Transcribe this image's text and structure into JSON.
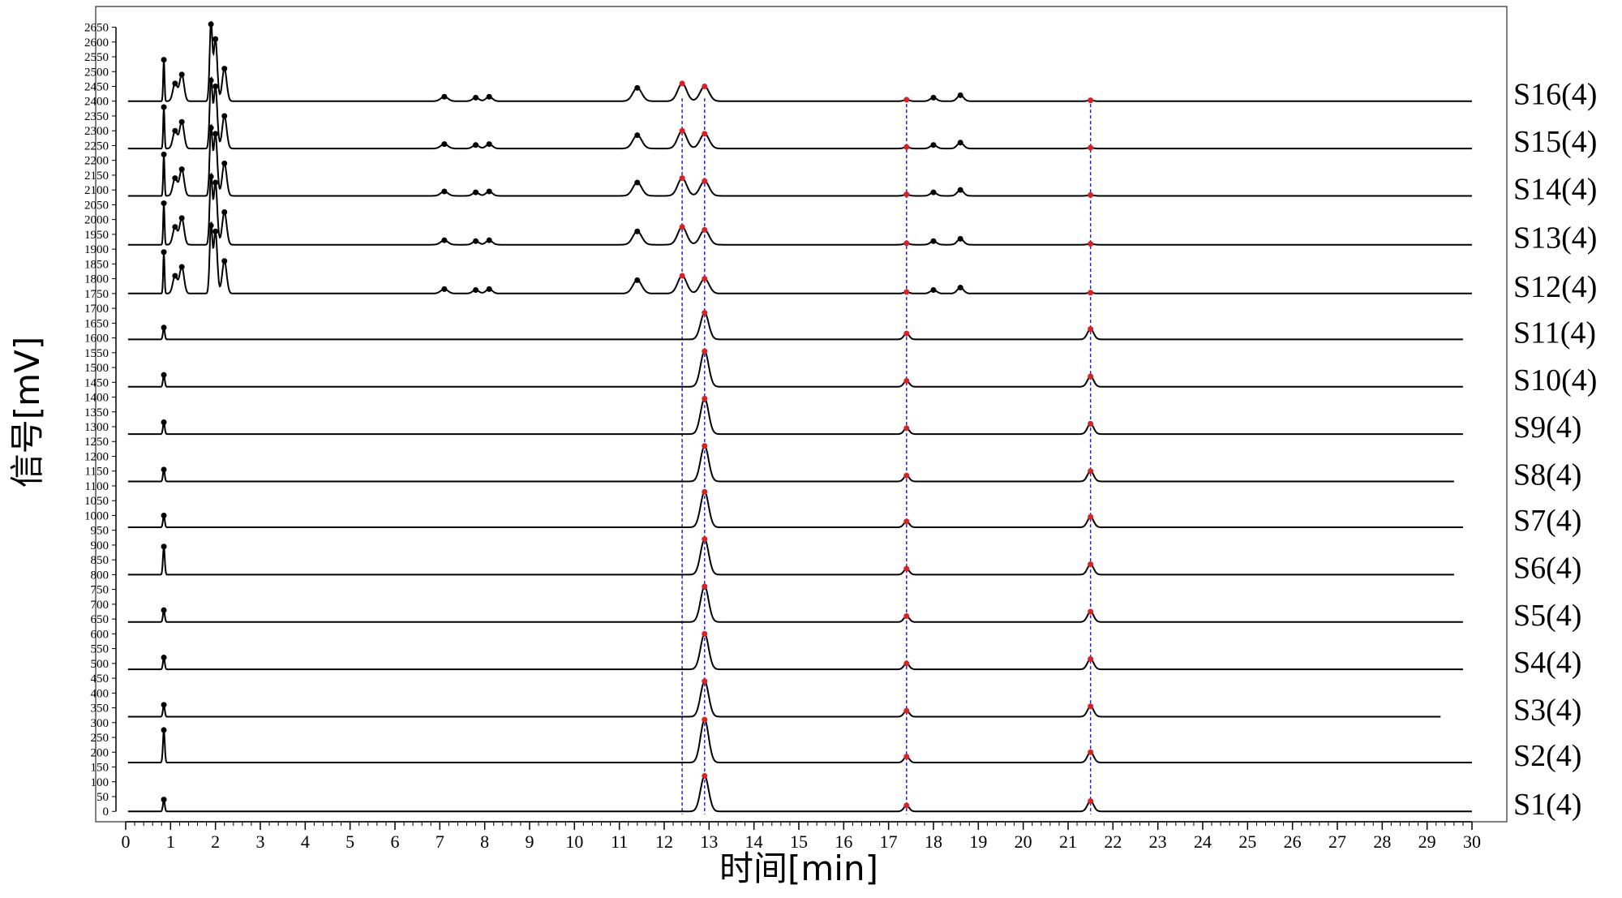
{
  "chart_data": {
    "type": "line",
    "title": "",
    "xlabel": "时间[min]",
    "ylabel": "信号[mV]",
    "xlim": [
      0,
      30
    ],
    "ylim": [
      -35,
      2720
    ],
    "x_ticks": [
      0,
      1,
      2,
      3,
      4,
      5,
      6,
      7,
      8,
      9,
      10,
      11,
      12,
      13,
      14,
      15,
      16,
      17,
      18,
      19,
      20,
      21,
      22,
      23,
      24,
      25,
      26,
      27,
      28,
      29,
      30
    ],
    "y_ticks": [
      0,
      50,
      100,
      150,
      200,
      250,
      300,
      350,
      400,
      450,
      500,
      550,
      600,
      650,
      700,
      750,
      800,
      850,
      900,
      950,
      1000,
      1050,
      1100,
      1150,
      1200,
      1250,
      1300,
      1350,
      1400,
      1450,
      1500,
      1550,
      1600,
      1650,
      1700,
      1750,
      1800,
      1850,
      1900,
      1950,
      2000,
      2050,
      2100,
      2150,
      2200,
      2250,
      2300,
      2350,
      2400,
      2450,
      2500,
      2550,
      2600,
      2650
    ],
    "grid": false,
    "marker_lines_x": [
      12.4,
      12.9,
      17.4,
      21.5
    ],
    "series_names": [
      "S1(4)",
      "S2(4)",
      "S3(4)",
      "S4(4)",
      "S5(4)",
      "S6(4)",
      "S7(4)",
      "S8(4)",
      "S9(4)",
      "S10(4)",
      "S11(4)",
      "S12(4)",
      "S13(4)",
      "S14(4)",
      "S15(4)",
      "S16(4)"
    ],
    "baselines": [
      0,
      165,
      320,
      480,
      640,
      800,
      960,
      1115,
      1275,
      1435,
      1595,
      1750,
      1915,
      2080,
      2240,
      2400
    ],
    "series_end_x": [
      30,
      30,
      29.3,
      29.8,
      29.8,
      29.6,
      29.8,
      29.6,
      29.8,
      29.8,
      29.8,
      30,
      30,
      30,
      30,
      30
    ],
    "peaks_group_a": {
      "series": [
        "S1(4)",
        "S2(4)",
        "S3(4)",
        "S4(4)",
        "S5(4)",
        "S6(4)",
        "S7(4)",
        "S8(4)",
        "S9(4)",
        "S10(4)",
        "S11(4)"
      ],
      "peaks": [
        {
          "x": 0.85,
          "height": 40,
          "width": 0.02
        },
        {
          "x": 12.9,
          "height": 120,
          "width": 0.09
        },
        {
          "x": 17.4,
          "height": 20,
          "width": 0.06
        },
        {
          "x": 21.5,
          "height": 35,
          "width": 0.07
        }
      ]
    },
    "peaks_group_b": {
      "series": [
        "S12(4)",
        "S13(4)",
        "S14(4)",
        "S15(4)",
        "S16(4)"
      ],
      "peaks": [
        {
          "x": 0.85,
          "height": 140,
          "width": 0.015
        },
        {
          "x": 1.1,
          "height": 60,
          "width": 0.05
        },
        {
          "x": 1.25,
          "height": 90,
          "width": 0.05
        },
        {
          "x": 1.9,
          "height": 230,
          "width": 0.03
        },
        {
          "x": 2.0,
          "height": 210,
          "width": 0.04
        },
        {
          "x": 2.2,
          "height": 110,
          "width": 0.05
        },
        {
          "x": 7.1,
          "height": 15,
          "width": 0.08
        },
        {
          "x": 7.8,
          "height": 12,
          "width": 0.07
        },
        {
          "x": 8.1,
          "height": 15,
          "width": 0.07
        },
        {
          "x": 11.4,
          "height": 45,
          "width": 0.1
        },
        {
          "x": 12.4,
          "height": 60,
          "width": 0.1
        },
        {
          "x": 12.9,
          "height": 50,
          "width": 0.1
        },
        {
          "x": 17.4,
          "height": 5,
          "width": 0.06
        },
        {
          "x": 18.0,
          "height": 12,
          "width": 0.07
        },
        {
          "x": 18.6,
          "height": 20,
          "width": 0.07
        },
        {
          "x": 21.5,
          "height": 3,
          "width": 0.06
        }
      ]
    },
    "peak_height_overrides": {
      "S2(4)": {
        "0.85": 110,
        "12.9": 145
      },
      "S6(4)": {
        "0.85": 95
      },
      "S11(4)": {
        "12.9": 90
      },
      "S16(4)": {
        "1.9": 260,
        "2.0": 240
      }
    },
    "colors": {
      "trace": "#000000",
      "marker_line": "#2020e0",
      "peak_marker": "#e02020",
      "frame": "#555555"
    }
  }
}
